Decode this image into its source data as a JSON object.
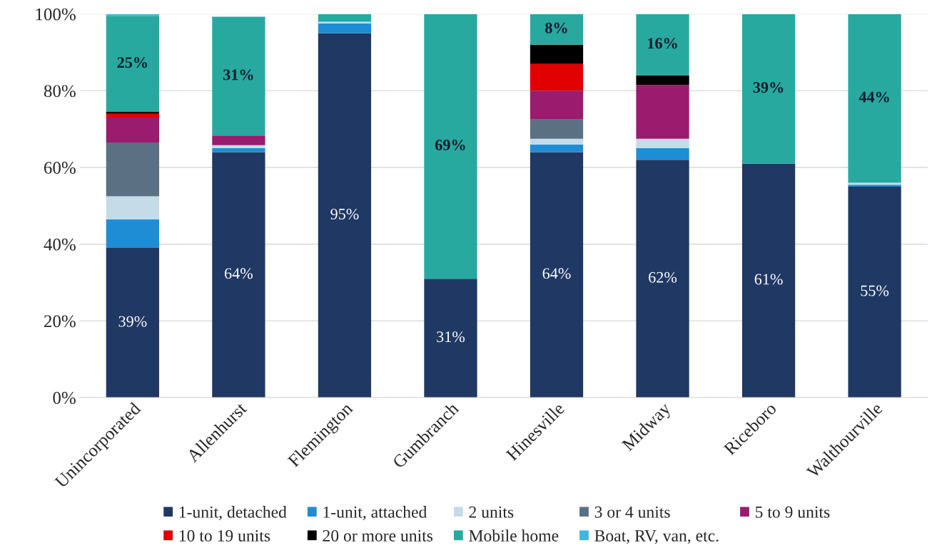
{
  "chart_data": {
    "type": "bar",
    "stacked": true,
    "categories": [
      "Unincorporated",
      "Allenhurst",
      "Flemington",
      "Gumbranch",
      "Hinesville",
      "Midway",
      "Riceboro",
      "Walthourville"
    ],
    "series": [
      {
        "name": "1-unit, detached",
        "color": "#1f3864",
        "values": [
          39,
          64,
          95,
          31,
          64,
          62,
          61,
          55
        ],
        "value_labels": [
          "39%",
          "64%",
          "95%",
          "31%",
          "64%",
          "62%",
          "61%",
          "55%"
        ]
      },
      {
        "name": "1-unit, attached",
        "color": "#1f8dd6",
        "values": [
          7.5,
          1,
          2.5,
          null,
          2,
          3,
          null,
          0.5
        ]
      },
      {
        "name": "2 units",
        "color": "#c5dbe8",
        "values": [
          6,
          0.8,
          0.5,
          null,
          1.5,
          2.5,
          null,
          0.5
        ]
      },
      {
        "name": "3 or 4 units",
        "color": "#5b7083",
        "values": [
          14,
          null,
          null,
          null,
          5,
          null,
          null,
          null
        ]
      },
      {
        "name": "5 to 9 units",
        "color": "#9b1b6e",
        "values": [
          6.5,
          2.5,
          null,
          null,
          7.5,
          14,
          null,
          null
        ]
      },
      {
        "name": "10 to 19 units",
        "color": "#e00000",
        "values": [
          1,
          null,
          null,
          null,
          7,
          null,
          null,
          null
        ]
      },
      {
        "name": "20 or more units",
        "color": "#000000",
        "values": [
          0.5,
          null,
          null,
          null,
          5,
          2.5,
          null,
          null
        ]
      },
      {
        "name": "Mobile home",
        "color": "#27a9a0",
        "values": [
          25,
          31,
          2,
          69,
          8,
          16,
          39,
          44
        ],
        "value_labels": [
          "25%",
          "31%",
          null,
          "69%",
          "8%",
          "16%",
          "39%",
          "44%"
        ]
      },
      {
        "name": "Boat, RV, van, etc.",
        "color": "#41b5e0",
        "values": [
          0.5,
          null,
          null,
          null,
          null,
          null,
          null,
          null
        ]
      }
    ],
    "ylim": [
      0,
      100
    ],
    "yticks": [
      {
        "value": 0,
        "label": "0%"
      },
      {
        "value": 20,
        "label": "20%"
      },
      {
        "value": 40,
        "label": "40%"
      },
      {
        "value": 60,
        "label": "60%"
      },
      {
        "value": 80,
        "label": "80%"
      },
      {
        "value": 100,
        "label": "100%"
      }
    ],
    "grid": "y",
    "legend": "bottom"
  }
}
